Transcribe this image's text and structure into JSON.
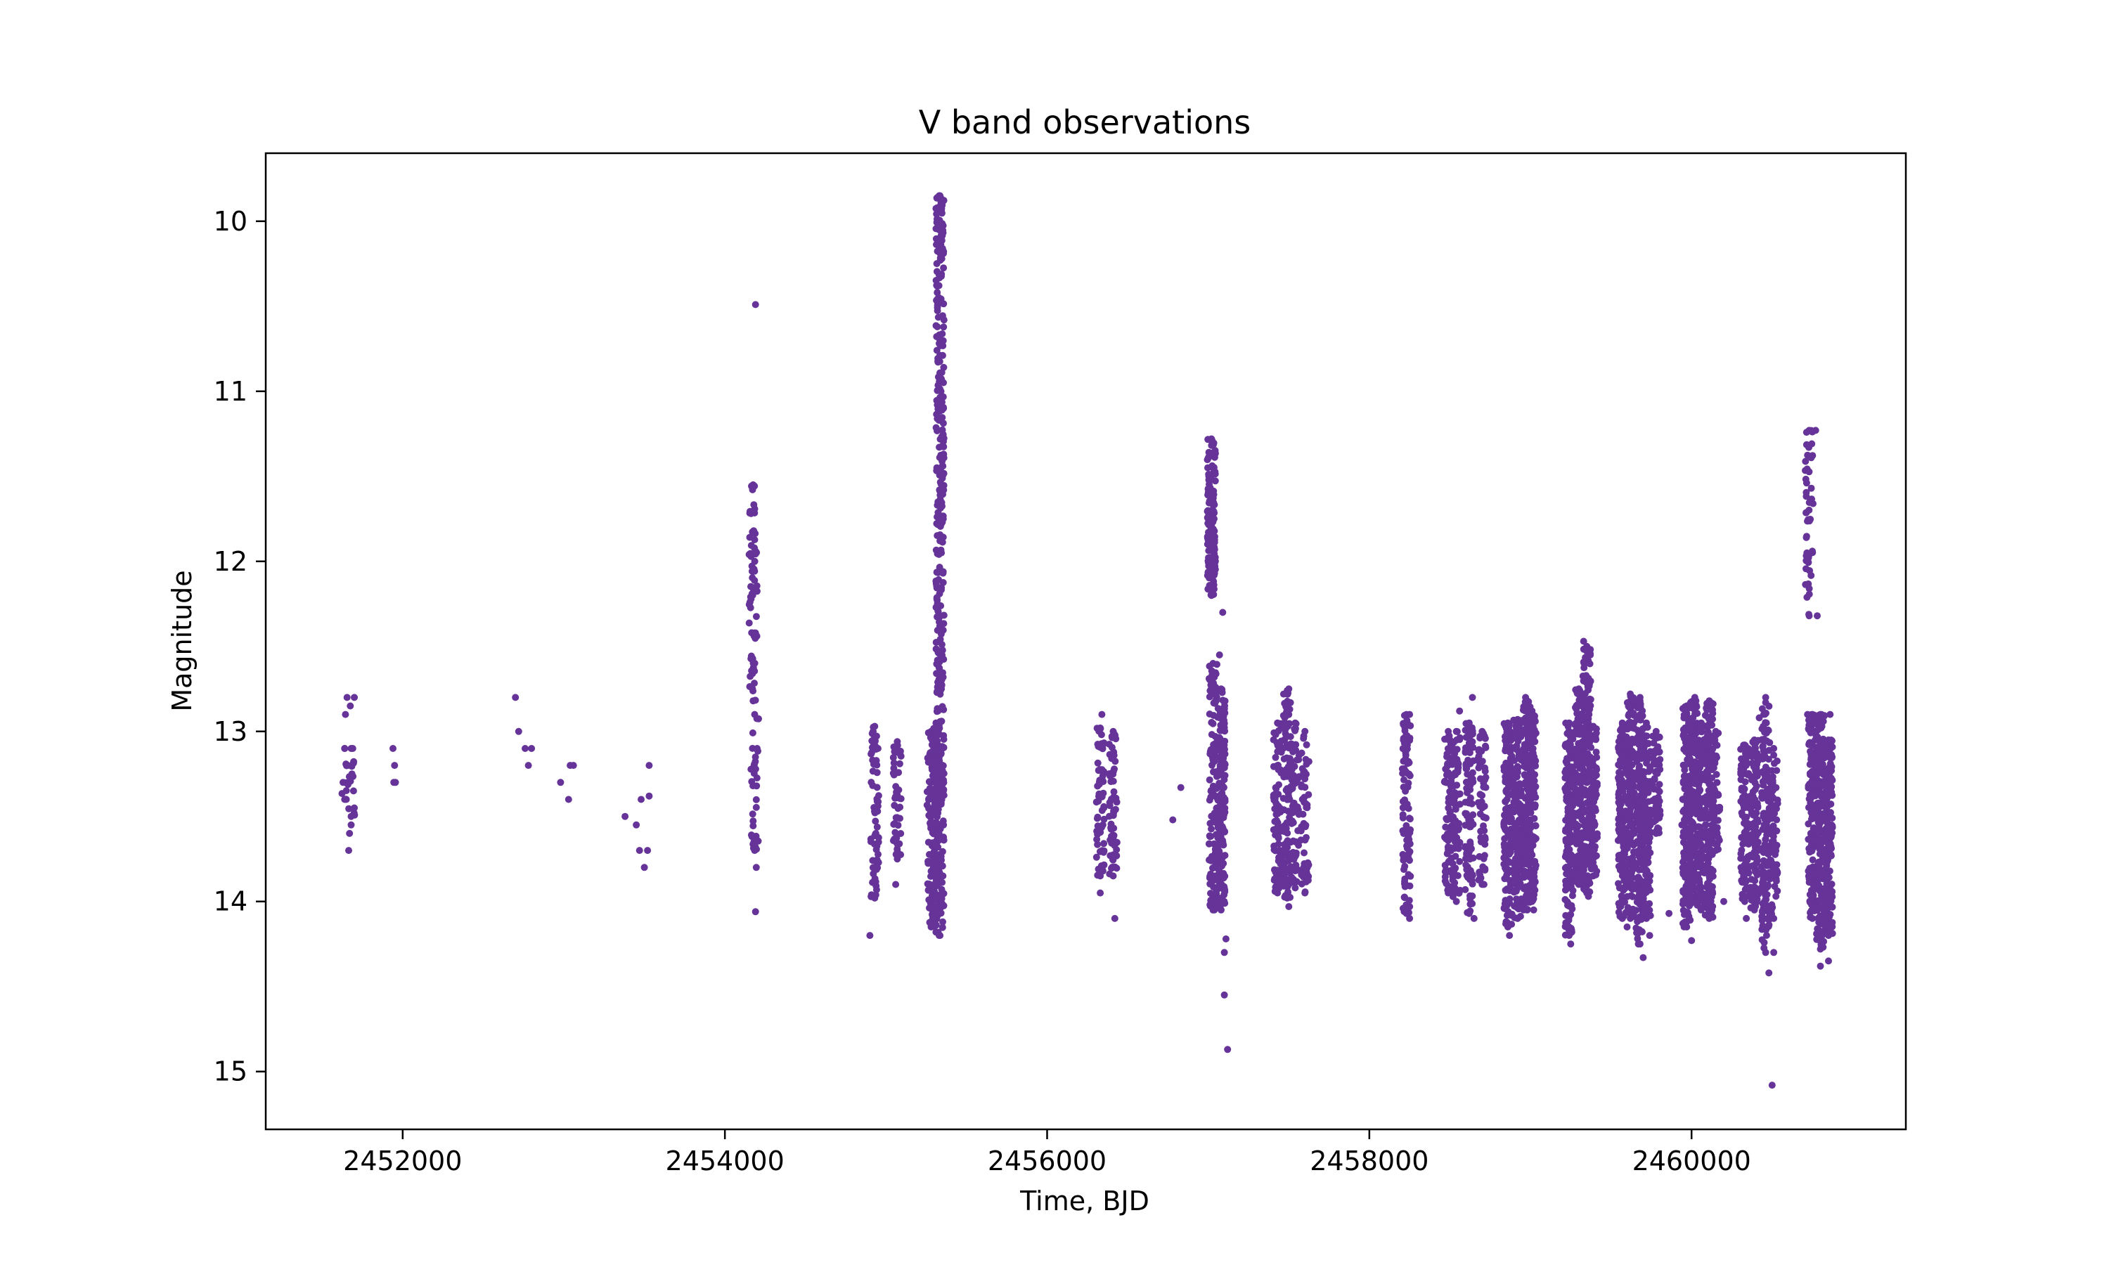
{
  "chart_data": {
    "type": "scatter",
    "title": "V band observations",
    "xlabel": "Time, BJD",
    "ylabel": "Magnitude",
    "xlim": [
      2451150,
      2461330
    ],
    "ylim": [
      15.34,
      9.6
    ],
    "y_inverted": true,
    "x_ticks": [
      2452000,
      2454000,
      2456000,
      2458000,
      2460000
    ],
    "x_tick_labels": [
      "2452000",
      "2454000",
      "2456000",
      "2458000",
      "2460000"
    ],
    "y_ticks": [
      10,
      11,
      12,
      13,
      14,
      15
    ],
    "y_tick_labels": [
      "10",
      "11",
      "12",
      "13",
      "14",
      "15"
    ],
    "marker_color": "#663399",
    "grid": false,
    "series": [
      {
        "name": "V band",
        "points": [
          [
            2451630,
            13.3
          ],
          [
            2451640,
            13.1
          ],
          [
            2451645,
            12.9
          ],
          [
            2451650,
            13.4
          ],
          [
            2451655,
            12.8
          ],
          [
            2451660,
            13.2
          ],
          [
            2451665,
            13.7
          ],
          [
            2451670,
            13.6
          ],
          [
            2451675,
            12.85
          ],
          [
            2451680,
            13.5
          ],
          [
            2451685,
            13.25
          ],
          [
            2451690,
            13.1
          ],
          [
            2451695,
            13.35
          ],
          [
            2451700,
            13.45
          ],
          [
            2451700,
            12.8
          ],
          [
            2451940,
            13.1
          ],
          [
            2451945,
            13.3
          ],
          [
            2451950,
            13.2
          ],
          [
            2451955,
            13.3
          ],
          [
            2452700,
            12.8
          ],
          [
            2452720,
            13.0
          ],
          [
            2452760,
            13.1
          ],
          [
            2452780,
            13.2
          ],
          [
            2452800,
            13.1
          ],
          [
            2452980,
            13.3
          ],
          [
            2453030,
            13.4
          ],
          [
            2453040,
            13.2
          ],
          [
            2453060,
            13.2
          ],
          [
            2453380,
            13.5
          ],
          [
            2453450,
            13.55
          ],
          [
            2453470,
            13.7
          ],
          [
            2453480,
            13.4
          ],
          [
            2453500,
            13.8
          ],
          [
            2453520,
            13.7
          ],
          [
            2453530,
            13.2
          ],
          [
            2453530,
            13.38
          ],
          [
            2454190,
            10.49
          ],
          [
            2454190,
            14.06
          ],
          [
            2454200,
            13.1
          ],
          [
            2454195,
            13.8
          ],
          [
            2454900,
            14.2
          ],
          [
            2454920,
            13.0
          ],
          [
            2454950,
            13.1
          ],
          [
            2455060,
            13.9
          ],
          [
            2455330,
            9.85
          ],
          [
            2455330,
            14.2
          ],
          [
            2456340,
            12.9
          ],
          [
            2456330,
            13.95
          ],
          [
            2456420,
            14.1
          ],
          [
            2456780,
            13.52
          ],
          [
            2456830,
            13.33
          ],
          [
            2457100,
            14.55
          ],
          [
            2457120,
            14.87
          ],
          [
            2457100,
            14.3
          ],
          [
            2457110,
            14.22
          ],
          [
            2457090,
            12.3
          ],
          [
            2457070,
            12.55
          ],
          [
            2457500,
            14.03
          ],
          [
            2457500,
            12.75
          ],
          [
            2458250,
            14.1
          ],
          [
            2458250,
            12.9
          ],
          [
            2458560,
            12.88
          ],
          [
            2458640,
            12.8
          ],
          [
            2458650,
            14.1
          ],
          [
            2458870,
            14.2
          ],
          [
            2458970,
            12.8
          ],
          [
            2459020,
            14.05
          ],
          [
            2459250,
            14.25
          ],
          [
            2459330,
            12.47
          ],
          [
            2459360,
            13.97
          ],
          [
            2459600,
            14.15
          ],
          [
            2459680,
            12.8
          ],
          [
            2459700,
            14.33
          ],
          [
            2459740,
            14.2
          ],
          [
            2459860,
            14.07
          ],
          [
            2459940,
            13.55
          ],
          [
            2460000,
            14.23
          ],
          [
            2460020,
            12.8
          ],
          [
            2460120,
            12.83
          ],
          [
            2460200,
            14.0
          ],
          [
            2460060,
            13.25
          ],
          [
            2460340,
            14.1
          ],
          [
            2460420,
            12.92
          ],
          [
            2460500,
            15.08
          ],
          [
            2460480,
            14.42
          ],
          [
            2460510,
            14.3
          ],
          [
            2460460,
            12.8
          ],
          [
            2460770,
            11.23
          ],
          [
            2460780,
            12.32
          ],
          [
            2460800,
            14.38
          ],
          [
            2460850,
            14.35
          ],
          [
            2460860,
            12.9
          ],
          [
            2460720,
            12.9
          ],
          [
            2460740,
            13.6
          ]
        ],
        "columns": [
          [
            2451640,
            13.1,
            13.4,
            6
          ],
          [
            2451680,
            13.1,
            13.55,
            10
          ],
          [
            2454175,
            11.55,
            12.82,
            70
          ],
          [
            2454185,
            12.9,
            13.7,
            30
          ],
          [
            2454930,
            12.97,
            13.98,
            60
          ],
          [
            2455070,
            13.06,
            13.75,
            50
          ],
          [
            2455280,
            13.0,
            14.15,
            90
          ],
          [
            2455310,
            12.95,
            14.18,
            80
          ],
          [
            2455335,
            9.85,
            14.2,
            400
          ],
          [
            2456330,
            12.98,
            13.85,
            60
          ],
          [
            2456410,
            13.0,
            13.85,
            60
          ],
          [
            2457020,
            11.28,
            12.2,
            160
          ],
          [
            2457030,
            12.6,
            14.05,
            120
          ],
          [
            2457080,
            12.75,
            14.05,
            150
          ],
          [
            2457430,
            12.95,
            13.95,
            90
          ],
          [
            2457490,
            12.76,
            13.98,
            110
          ],
          [
            2457540,
            12.95,
            13.92,
            60
          ],
          [
            2457600,
            13.0,
            13.95,
            50
          ],
          [
            2458230,
            12.9,
            14.07,
            100
          ],
          [
            2458490,
            13.0,
            13.95,
            80
          ],
          [
            2458540,
            13.0,
            14.0,
            80
          ],
          [
            2458620,
            12.95,
            14.07,
            100
          ],
          [
            2458700,
            13.0,
            13.9,
            60
          ],
          [
            2458860,
            12.95,
            14.15,
            150
          ],
          [
            2458920,
            12.93,
            14.1,
            150
          ],
          [
            2458980,
            12.82,
            14.05,
            160
          ],
          [
            2459010,
            12.88,
            14.0,
            140
          ],
          [
            2459240,
            12.95,
            14.2,
            150
          ],
          [
            2459300,
            12.75,
            13.9,
            160
          ],
          [
            2459350,
            12.5,
            13.95,
            160
          ],
          [
            2459390,
            12.97,
            13.85,
            90
          ],
          [
            2459570,
            12.95,
            14.1,
            150
          ],
          [
            2459620,
            12.78,
            14.1,
            160
          ],
          [
            2459680,
            12.82,
            14.25,
            170
          ],
          [
            2459720,
            12.95,
            14.1,
            120
          ],
          [
            2459780,
            13.0,
            13.6,
            60
          ],
          [
            2459970,
            12.85,
            14.15,
            150
          ],
          [
            2460010,
            12.82,
            14.0,
            150
          ],
          [
            2460060,
            12.95,
            14.05,
            120
          ],
          [
            2460110,
            12.82,
            14.1,
            150
          ],
          [
            2460150,
            13.0,
            13.7,
            50
          ],
          [
            2460330,
            13.08,
            14.0,
            100
          ],
          [
            2460390,
            13.05,
            14.05,
            120
          ],
          [
            2460460,
            12.83,
            14.3,
            150
          ],
          [
            2460510,
            13.1,
            14.1,
            80
          ],
          [
            2460730,
            11.23,
            12.32,
            50
          ],
          [
            2460750,
            12.9,
            14.1,
            150
          ],
          [
            2460800,
            12.9,
            14.28,
            180
          ],
          [
            2460850,
            13.05,
            14.2,
            180
          ]
        ]
      }
    ]
  }
}
